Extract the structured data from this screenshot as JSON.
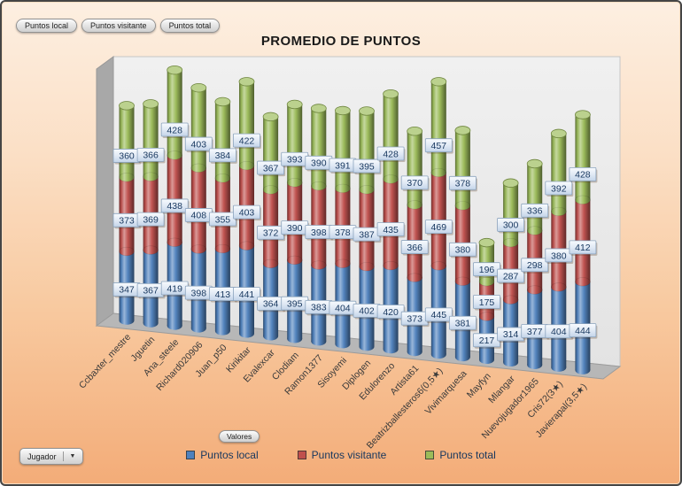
{
  "pivot_controls": {
    "field_buttons": [
      "Puntos local",
      "Puntos visitante",
      "Puntos total"
    ],
    "values_button": "Valores",
    "axis_button": "Jugador"
  },
  "chart_data": {
    "type": "bar",
    "subtype": "3d-stacked-cylinder",
    "title": "PROMEDIO DE PUNTOS",
    "legend_position": "bottom",
    "value_axis_visible": false,
    "data_labels_visible": true,
    "categories": [
      "Ccbaxter_mestre",
      "Jguetin",
      "Ana_steele",
      "Richard020906",
      "Juan_p50",
      "Kirikitar",
      "Evalexcar",
      "Clodiam",
      "Ramon1377",
      "Sisoyemi",
      "Diplogen",
      "Edulorenzo",
      "Artista61",
      "Beatrizballesteros6(0,5★)",
      "Vivimarquesa",
      "Mayfyn",
      "Mlangar",
      "Nuevojugador1965",
      "Cris72(3★)",
      "Javierapal(3,5★)"
    ],
    "series": [
      {
        "name": "Puntos local",
        "color": "#4F81BD",
        "values": [
          347,
          367,
          419,
          398,
          413,
          441,
          364,
          395,
          383,
          404,
          402,
          420,
          373,
          445,
          381,
          217,
          314,
          377,
          404,
          444
        ]
      },
      {
        "name": "Puntos visitante",
        "color": "#C0504D",
        "values": [
          373,
          369,
          438,
          408,
          355,
          403,
          372,
          390,
          398,
          378,
          387,
          435,
          366,
          469,
          380,
          175,
          287,
          298,
          380,
          412
        ]
      },
      {
        "name": "Puntos total",
        "color": "#9BBB59",
        "values": [
          360,
          366,
          428,
          403,
          384,
          422,
          367,
          393,
          390,
          391,
          395,
          428,
          370,
          457,
          378,
          196,
          300,
          336,
          392,
          428
        ]
      }
    ],
    "label_style": {
      "text_color": "#17375E",
      "box_border": "#8BA3BD"
    }
  }
}
